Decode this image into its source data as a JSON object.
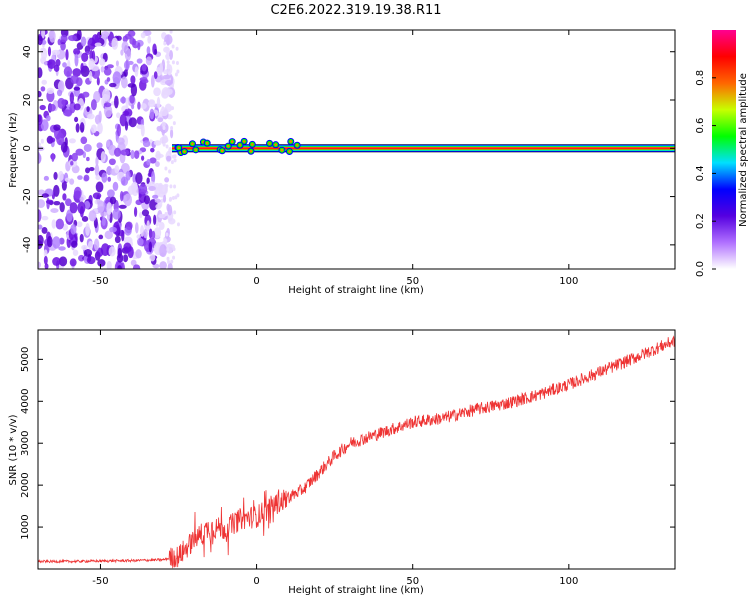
{
  "title": "C2E6.2022.319.19.38.R11",
  "chart_data": [
    {
      "type": "heatmap",
      "title": "C2E6.2022.319.19.38.R11",
      "xlabel": "Height of straight line (km)",
      "ylabel": "Frequency (Hz)",
      "xlim": [
        -70,
        134
      ],
      "ylim": [
        -50,
        49
      ],
      "x_ticks": [
        -50,
        0,
        50,
        100
      ],
      "y_ticks": [
        -40,
        -20,
        0,
        20,
        40
      ],
      "grid": false,
      "noise_region_x": [
        -70,
        -30
      ],
      "signal": {
        "x_start": -29,
        "x_end": 134,
        "frequency": 0,
        "band_halfwidth": 2,
        "peak_amplitude": 1.0
      },
      "colorbar": {
        "label": "Normalized spectral amplitude",
        "range": [
          0,
          1
        ],
        "ticks": [
          "0.0",
          "0.2",
          "0.4",
          "0.6",
          "0.8"
        ],
        "colors": [
          "#ffffff",
          "#b070ff",
          "#5500e0",
          "#0000ff",
          "#00e0ff",
          "#00ff00",
          "#c8ff00",
          "#ff6600",
          "#ff0000",
          "#ff0090"
        ]
      }
    },
    {
      "type": "line",
      "xlabel": "Height of straight line (km)",
      "ylabel": "SNR (10 * v/v)",
      "xlim": [
        -70,
        134
      ],
      "ylim": [
        0,
        5700
      ],
      "x_ticks": [
        -50,
        0,
        50,
        100
      ],
      "y_ticks": [
        1000,
        2000,
        3000,
        4000,
        5000
      ],
      "grid": false,
      "series": [
        {
          "color": "#ee3333",
          "x": [
            -70,
            -60,
            -50,
            -40,
            -30,
            -25,
            -20,
            -15,
            -10,
            -5,
            0,
            5,
            10,
            15,
            20,
            25,
            30,
            40,
            50,
            60,
            70,
            80,
            90,
            100,
            110,
            120,
            134
          ],
          "y": [
            180,
            180,
            190,
            200,
            220,
            300,
            700,
            1000,
            950,
            1200,
            1250,
            1500,
            1700,
            1900,
            2300,
            2700,
            3000,
            3250,
            3500,
            3600,
            3800,
            3950,
            4150,
            4400,
            4700,
            5000,
            5450
          ],
          "noise_amplitude": 300
        }
      ]
    }
  ]
}
